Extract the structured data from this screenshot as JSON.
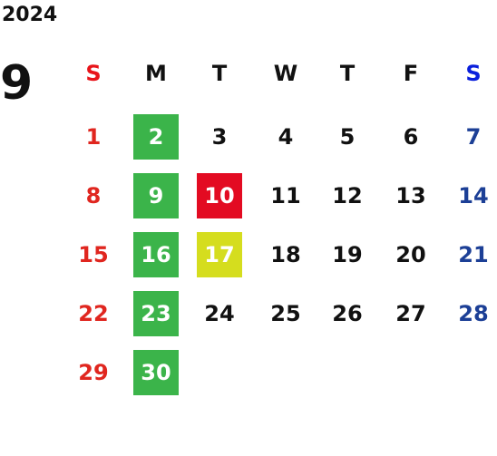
{
  "year": "2024",
  "month": "9",
  "weekdays": [
    "S",
    "M",
    "T",
    "W",
    "T",
    "F",
    "S"
  ],
  "weeks": [
    [
      {
        "day": 1
      },
      {
        "day": 2,
        "color": "#3bb44a"
      },
      {
        "day": 3
      },
      {
        "day": 4
      },
      {
        "day": 5
      },
      {
        "day": 6
      },
      {
        "day": 7
      }
    ],
    [
      {
        "day": 8
      },
      {
        "day": 9,
        "color": "#3bb44a"
      },
      {
        "day": 10,
        "color": "#e30b22"
      },
      {
        "day": 11
      },
      {
        "day": 12
      },
      {
        "day": 13
      },
      {
        "day": 14
      }
    ],
    [
      {
        "day": 15
      },
      {
        "day": 16,
        "color": "#3bb44a"
      },
      {
        "day": 17,
        "color": "#d5dd1e"
      },
      {
        "day": 18
      },
      {
        "day": 19
      },
      {
        "day": 20
      },
      {
        "day": 21
      }
    ],
    [
      {
        "day": 22
      },
      {
        "day": 23,
        "color": "#3bb44a"
      },
      {
        "day": 24
      },
      {
        "day": 25
      },
      {
        "day": 26
      },
      {
        "day": 27
      },
      {
        "day": 28
      }
    ],
    [
      {
        "day": 29
      },
      {
        "day": 30,
        "color": "#3bb44a"
      }
    ]
  ]
}
